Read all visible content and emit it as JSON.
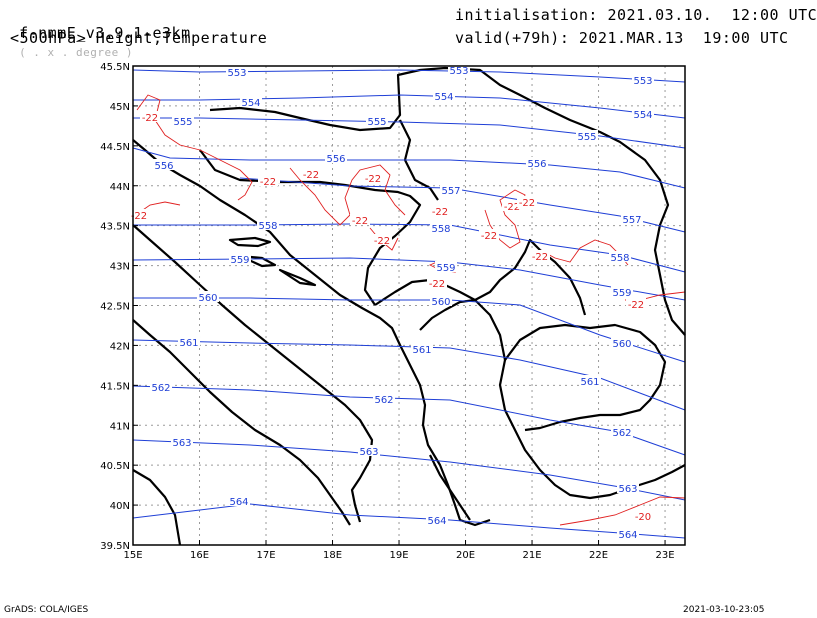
{
  "header": {
    "model": "f-nmmE_v3.9.1-e3km",
    "units": "( . x . degree )",
    "field": "<500hPa> Height,Temperature",
    "init": "initialisation: 2021.03.10.  12:00 UTC",
    "valid": "valid(+79h): 2021.MAR.13  19:00 UTC"
  },
  "footer": {
    "left": "GrADS: COLA/IGES",
    "right": "2021-03-10-23:05"
  },
  "map": {
    "lon_range": [
      15,
      23.3
    ],
    "lat_range": [
      39.5,
      45.5
    ],
    "x_ticks": [
      "15E",
      "16E",
      "17E",
      "18E",
      "19E",
      "20E",
      "21E",
      "22E",
      "23E"
    ],
    "y_ticks": [
      "39.5N",
      "40N",
      "40.5N",
      "41N",
      "41.5N",
      "42N",
      "42.5N",
      "43N",
      "43.5N",
      "44N",
      "44.5N",
      "45N",
      "45.5N"
    ],
    "colors": {
      "height": "#1f3fd6",
      "temperature": "#e02020",
      "border": "#000000",
      "grid": "#9a9a9a"
    },
    "height_labels": [
      "553",
      "554",
      "555",
      "556",
      "557",
      "558",
      "559",
      "560",
      "561",
      "562",
      "563",
      "564"
    ],
    "temperature_labels": [
      "-22",
      "-20"
    ]
  }
}
